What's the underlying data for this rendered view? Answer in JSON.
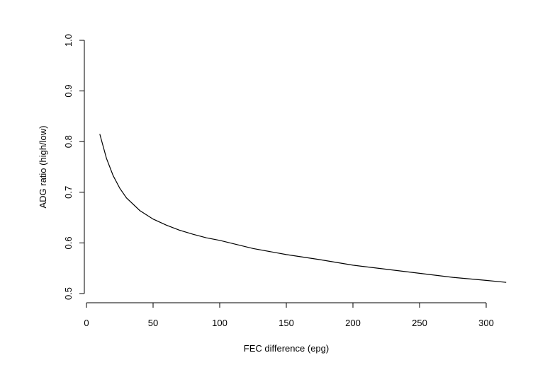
{
  "chart_data": {
    "type": "line",
    "xlabel": "FEC difference (epg)",
    "ylabel": "ADG ratio (high/low)",
    "xlim": [
      0,
      315
    ],
    "ylim": [
      0.5,
      1.0
    ],
    "x_ticks": [
      0,
      50,
      100,
      150,
      200,
      250,
      300
    ],
    "y_ticks": [
      0.5,
      0.6,
      0.7,
      0.8,
      0.9,
      1.0
    ],
    "y_tick_labels": [
      "0.5",
      "0.6",
      "0.7",
      "0.8",
      "0.9",
      "1.0"
    ],
    "grid": false,
    "legend": "none",
    "series": [
      {
        "x": [
          10,
          15,
          20,
          25,
          30,
          40,
          50,
          60,
          70,
          80,
          90,
          100,
          125,
          150,
          175,
          200,
          225,
          250,
          275,
          300,
          315
        ],
        "y": [
          0.815,
          0.767,
          0.733,
          0.708,
          0.689,
          0.664,
          0.647,
          0.635,
          0.625,
          0.617,
          0.61,
          0.605,
          0.589,
          0.577,
          0.567,
          0.556,
          0.548,
          0.54,
          0.532,
          0.526,
          0.522
        ]
      }
    ]
  }
}
